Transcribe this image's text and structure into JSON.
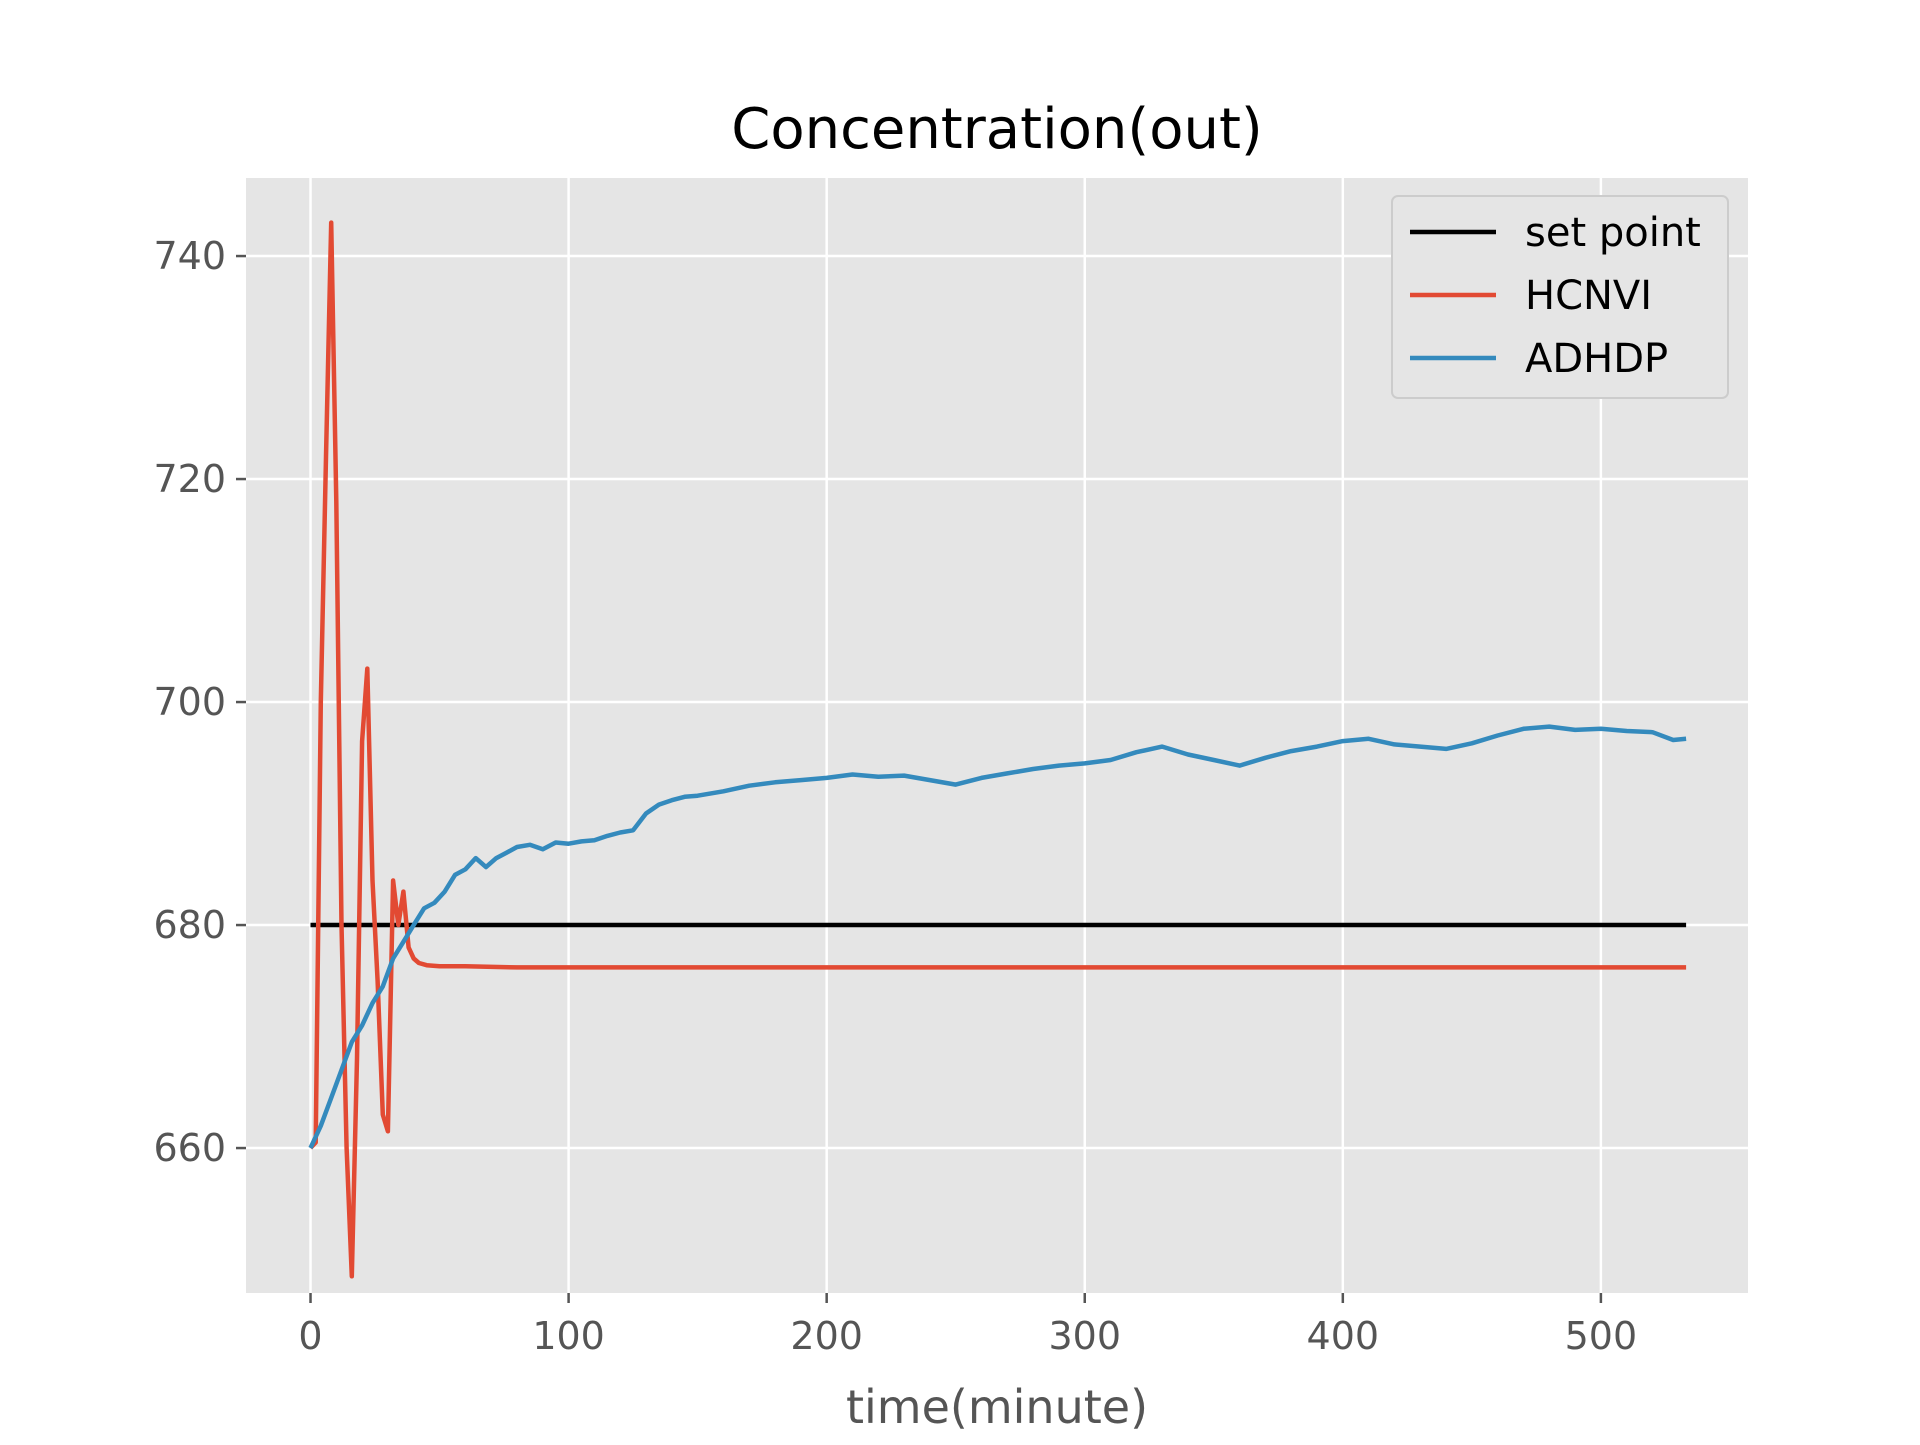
{
  "chart_data": {
    "type": "line",
    "title": "Concentration(out)",
    "xlabel": "time(minute)",
    "ylabel": "",
    "xlim": [
      -25,
      557
    ],
    "ylim": [
      647,
      747
    ],
    "xticks": [
      0,
      100,
      200,
      300,
      400,
      500
    ],
    "yticks": [
      660,
      680,
      700,
      720,
      740
    ],
    "grid": true,
    "background": "#e5e5e5",
    "legend_position": "top-right",
    "series": [
      {
        "name": "set point",
        "color": "#000000",
        "x": [
          0,
          533
        ],
        "y": [
          680,
          680
        ]
      },
      {
        "name": "HCNVI",
        "color": "#e24a33",
        "x": [
          0,
          2,
          4,
          6,
          8,
          10,
          12,
          14,
          16,
          18,
          20,
          22,
          24,
          26,
          28,
          30,
          32,
          34,
          36,
          38,
          40,
          42,
          45,
          50,
          60,
          80,
          120,
          200,
          300,
          400,
          533
        ],
        "y": [
          660,
          660.5,
          700,
          722,
          743,
          718,
          680,
          660,
          648.5,
          668,
          696.5,
          703,
          684,
          675,
          663,
          661.5,
          684,
          680,
          683,
          678,
          677,
          676.6,
          676.4,
          676.3,
          676.3,
          676.2,
          676.2,
          676.2,
          676.2,
          676.2,
          676.2
        ]
      },
      {
        "name": "ADHDP",
        "color": "#348abd",
        "x": [
          0,
          4,
          8,
          12,
          16,
          20,
          24,
          28,
          32,
          36,
          40,
          44,
          48,
          52,
          56,
          60,
          64,
          68,
          72,
          76,
          80,
          85,
          90,
          95,
          100,
          105,
          110,
          115,
          120,
          125,
          130,
          135,
          140,
          145,
          150,
          160,
          170,
          180,
          190,
          200,
          210,
          220,
          230,
          240,
          250,
          260,
          270,
          280,
          290,
          300,
          310,
          320,
          330,
          340,
          350,
          360,
          370,
          380,
          390,
          400,
          410,
          420,
          430,
          440,
          450,
          460,
          470,
          480,
          490,
          500,
          510,
          520,
          528,
          533
        ],
        "y": [
          660,
          662,
          664.5,
          667,
          669.5,
          671,
          673,
          674.5,
          677,
          678.5,
          680,
          681.5,
          682,
          683,
          684.5,
          685,
          686,
          685.2,
          686,
          686.5,
          687,
          687.2,
          686.8,
          687.4,
          687.3,
          687.5,
          687.6,
          688,
          688.3,
          688.5,
          690,
          690.8,
          691.2,
          691.5,
          691.6,
          692,
          692.5,
          692.8,
          693,
          693.2,
          693.5,
          693.3,
          693.4,
          693,
          692.6,
          693.2,
          693.6,
          694,
          694.3,
          694.5,
          694.8,
          695.5,
          696,
          695.3,
          694.8,
          694.3,
          695,
          695.6,
          696,
          696.5,
          696.7,
          696.2,
          696,
          695.8,
          696.3,
          697,
          697.6,
          697.8,
          697.5,
          697.6,
          697.4,
          697.3,
          696.6,
          696.7
        ]
      }
    ]
  }
}
